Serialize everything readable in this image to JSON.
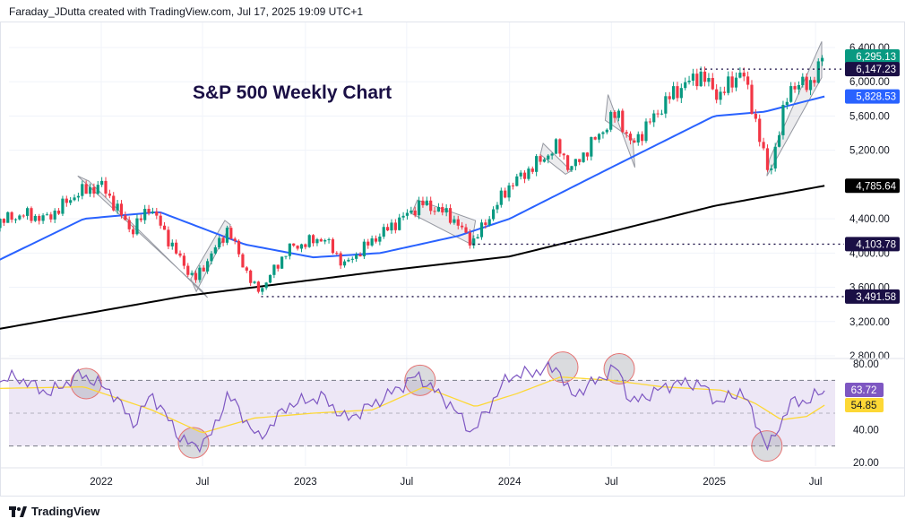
{
  "header": {
    "attribution": "Faraday_JDutta created with TradingView.com, Jul 17, 2025 19:09 UTC+1"
  },
  "footer": {
    "brand": "TradingView"
  },
  "chart_data": [
    {
      "type": "candlestick",
      "title": "S&P 500 Weekly Chart",
      "ylim": [
        2800,
        6400
      ],
      "y_ticks": [
        "6,400.00",
        "6,000.00",
        "5,600.00",
        "5,200.00",
        "4,400.00",
        "4,000.00",
        "3,600.00",
        "3,200.00",
        "2,800.00"
      ],
      "y_tick_values": [
        6400,
        6000,
        5600,
        5200,
        4400,
        4000,
        3600,
        3200,
        2800
      ],
      "x_ticks": [
        {
          "label": "2022",
          "date": "2022-01"
        },
        {
          "label": "Jul",
          "date": "2022-07"
        },
        {
          "label": "2023",
          "date": "2023-01"
        },
        {
          "label": "Jul",
          "date": "2023-07"
        },
        {
          "label": "2024",
          "date": "2024-01"
        },
        {
          "label": "Jul",
          "date": "2024-07"
        },
        {
          "label": "2025",
          "date": "2025-01"
        },
        {
          "label": "Jul",
          "date": "2025-07"
        }
      ],
      "xrange": [
        "2021-06-20",
        "2025-08-10"
      ],
      "grid": true,
      "colors": {
        "up": "#089981",
        "down": "#f23645",
        "ma_fast": "#2962ff",
        "ma_slow": "#000000",
        "drawing": "#9598a1",
        "level": "#1a0f45"
      },
      "price_path": [
        [
          "2021-06-20",
          4350
        ],
        [
          "2021-08-15",
          4450
        ],
        [
          "2021-09-25",
          4400
        ],
        [
          "2021-11-20",
          4700
        ],
        [
          "2022-01-02",
          4790
        ],
        [
          "2022-02-25",
          4250
        ],
        [
          "2022-03-28",
          4550
        ],
        [
          "2022-05-15",
          4000
        ],
        [
          "2022-06-17",
          3680
        ],
        [
          "2022-08-15",
          4280
        ],
        [
          "2022-09-30",
          3600
        ],
        [
          "2022-10-14",
          3580
        ],
        [
          "2022-12-01",
          4050
        ],
        [
          "2023-02-02",
          4180
        ],
        [
          "2023-03-12",
          3860
        ],
        [
          "2023-05-01",
          4150
        ],
        [
          "2023-07-28",
          4580
        ],
        [
          "2023-09-15",
          4450
        ],
        [
          "2023-10-27",
          4120
        ],
        [
          "2023-12-29",
          4770
        ],
        [
          "2024-03-28",
          5250
        ],
        [
          "2024-04-19",
          4970
        ],
        [
          "2024-07-12",
          5650
        ],
        [
          "2024-08-05",
          5250
        ],
        [
          "2024-10-18",
          5860
        ],
        [
          "2024-12-06",
          6090
        ],
        [
          "2025-01-10",
          5830
        ],
        [
          "2025-02-19",
          6140
        ],
        [
          "2025-03-14",
          5600
        ],
        [
          "2025-04-08",
          4900
        ],
        [
          "2025-05-16",
          5950
        ],
        [
          "2025-06-20",
          5970
        ],
        [
          "2025-07-17",
          6295.13
        ]
      ],
      "ma_fast_path": [
        [
          "2021-06-20",
          3880
        ],
        [
          "2021-12-01",
          4400
        ],
        [
          "2022-04-15",
          4480
        ],
        [
          "2022-09-15",
          4100
        ],
        [
          "2023-01-15",
          3950
        ],
        [
          "2023-05-15",
          4000
        ],
        [
          "2023-10-01",
          4200
        ],
        [
          "2024-01-01",
          4400
        ],
        [
          "2024-07-01",
          5000
        ],
        [
          "2025-01-01",
          5600
        ],
        [
          "2025-04-01",
          5650
        ],
        [
          "2025-07-17",
          5828.53
        ]
      ],
      "ma_slow_path": [
        [
          "2021-06-20",
          3100
        ],
        [
          "2022-06-01",
          3500
        ],
        [
          "2023-06-01",
          3800
        ],
        [
          "2024-01-01",
          3960
        ],
        [
          "2024-07-01",
          4250
        ],
        [
          "2025-01-01",
          4550
        ],
        [
          "2025-07-17",
          4785.64
        ]
      ],
      "price_labels": [
        {
          "value": "6,295.13",
          "price": 6295.13,
          "bg": "#089981",
          "fg": "#ffffff"
        },
        {
          "value": "6,147.23",
          "price": 6147.23,
          "bg": "#1a0f45",
          "fg": "#ffffff"
        },
        {
          "value": "5,828.53",
          "price": 5828.53,
          "bg": "#2962ff",
          "fg": "#ffffff"
        },
        {
          "value": "4,785.64",
          "price": 4785.64,
          "bg": "#000000",
          "fg": "#ffffff"
        },
        {
          "value": "4,103.78",
          "price": 4103.78,
          "bg": "#1a0f45",
          "fg": "#ffffff"
        },
        {
          "value": "3,491.58",
          "price": 3491.58,
          "bg": "#1a0f45",
          "fg": "#ffffff"
        }
      ],
      "levels": [
        {
          "price": 6147.23,
          "from": "2024-12-06"
        },
        {
          "price": 4103.78,
          "from": "2023-10-27"
        },
        {
          "price": 3491.58,
          "from": "2022-10-14"
        }
      ],
      "channels": [
        [
          [
            "2021-12-10",
            4840
          ],
          [
            "2022-07-10",
            3480
          ],
          [
            "2022-06-30",
            3560
          ],
          [
            "2021-11-20",
            4900
          ]
        ],
        [
          [
            "2022-06-20",
            3550
          ],
          [
            "2022-08-20",
            4330
          ],
          [
            "2022-08-10",
            4380
          ],
          [
            "2022-06-10",
            3700
          ]
        ],
        [
          [
            "2023-07-20",
            4620
          ],
          [
            "2023-11-01",
            4380
          ],
          [
            "2023-10-25",
            4100
          ],
          [
            "2023-07-10",
            4460
          ]
        ],
        [
          [
            "2024-03-01",
            5280
          ],
          [
            "2024-04-20",
            4960
          ],
          [
            "2024-04-10",
            4920
          ],
          [
            "2024-02-25",
            5150
          ]
        ],
        [
          [
            "2024-06-25",
            5850
          ],
          [
            "2024-08-12",
            5000
          ],
          [
            "2024-08-08",
            5330
          ],
          [
            "2024-06-20",
            5550
          ]
        ],
        [
          [
            "2025-04-10",
            5100
          ],
          [
            "2025-07-12",
            6470
          ],
          [
            "2025-07-12",
            6050
          ],
          [
            "2025-04-05",
            4900
          ]
        ]
      ]
    },
    {
      "type": "line",
      "ylim": [
        15,
        85
      ],
      "y_ticks": [
        "80.00",
        "40.00",
        "20.00"
      ],
      "y_tick_values": [
        80,
        40,
        20
      ],
      "bands": [
        30,
        50,
        70
      ],
      "colors": {
        "rsi": "#7e57c2",
        "signal": "#fdd835",
        "band_fill": "#ede7f6"
      },
      "rsi_path": [
        [
          "2021-06-20",
          68
        ],
        [
          "2021-08-01",
          72
        ],
        [
          "2021-10-01",
          62
        ],
        [
          "2021-11-25",
          74
        ],
        [
          "2022-01-20",
          63
        ],
        [
          "2022-03-01",
          43
        ],
        [
          "2022-04-01",
          62
        ],
        [
          "2022-05-20",
          36
        ],
        [
          "2022-06-17",
          29
        ],
        [
          "2022-07-20",
          38
        ],
        [
          "2022-08-15",
          62
        ],
        [
          "2022-10-10",
          34
        ],
        [
          "2022-12-01",
          55
        ],
        [
          "2023-02-01",
          60
        ],
        [
          "2023-03-15",
          46
        ],
        [
          "2023-05-15",
          58
        ],
        [
          "2023-07-20",
          73
        ],
        [
          "2023-09-15",
          56
        ],
        [
          "2023-10-27",
          38
        ],
        [
          "2023-12-29",
          72
        ],
        [
          "2024-03-28",
          78
        ],
        [
          "2024-04-19",
          60
        ],
        [
          "2024-07-12",
          78
        ],
        [
          "2024-08-05",
          56
        ],
        [
          "2024-10-18",
          68
        ],
        [
          "2024-12-06",
          68
        ],
        [
          "2025-01-10",
          56
        ],
        [
          "2025-02-19",
          64
        ],
        [
          "2025-04-08",
          28
        ],
        [
          "2025-05-16",
          56
        ],
        [
          "2025-06-20",
          58
        ],
        [
          "2025-07-17",
          63.72
        ]
      ],
      "signal_path": [
        [
          "2021-06-20",
          65
        ],
        [
          "2021-12-01",
          66
        ],
        [
          "2022-04-01",
          52
        ],
        [
          "2022-07-01",
          38
        ],
        [
          "2022-10-01",
          47
        ],
        [
          "2023-01-15",
          50
        ],
        [
          "2023-05-01",
          52
        ],
        [
          "2023-08-01",
          66
        ],
        [
          "2023-11-01",
          54
        ],
        [
          "2024-01-15",
          62
        ],
        [
          "2024-04-01",
          72
        ],
        [
          "2024-07-01",
          70
        ],
        [
          "2024-10-01",
          66
        ],
        [
          "2025-01-15",
          64
        ],
        [
          "2025-03-15",
          56
        ],
        [
          "2025-05-01",
          46
        ],
        [
          "2025-06-15",
          48
        ],
        [
          "2025-07-17",
          54.85
        ]
      ],
      "labels": [
        {
          "value": "63.72",
          "bg": "#7e57c2",
          "fg": "#ffffff",
          "v": 63.72
        },
        {
          "value": "54.85",
          "bg": "#fdd835",
          "fg": "#131722",
          "v": 54.85
        }
      ],
      "circles": [
        [
          "2021-12-05",
          68
        ],
        [
          "2022-06-15",
          32
        ],
        [
          "2023-07-25",
          70
        ],
        [
          "2024-04-05",
          78
        ],
        [
          "2024-07-15",
          77
        ],
        [
          "2025-04-05",
          30
        ]
      ]
    }
  ]
}
